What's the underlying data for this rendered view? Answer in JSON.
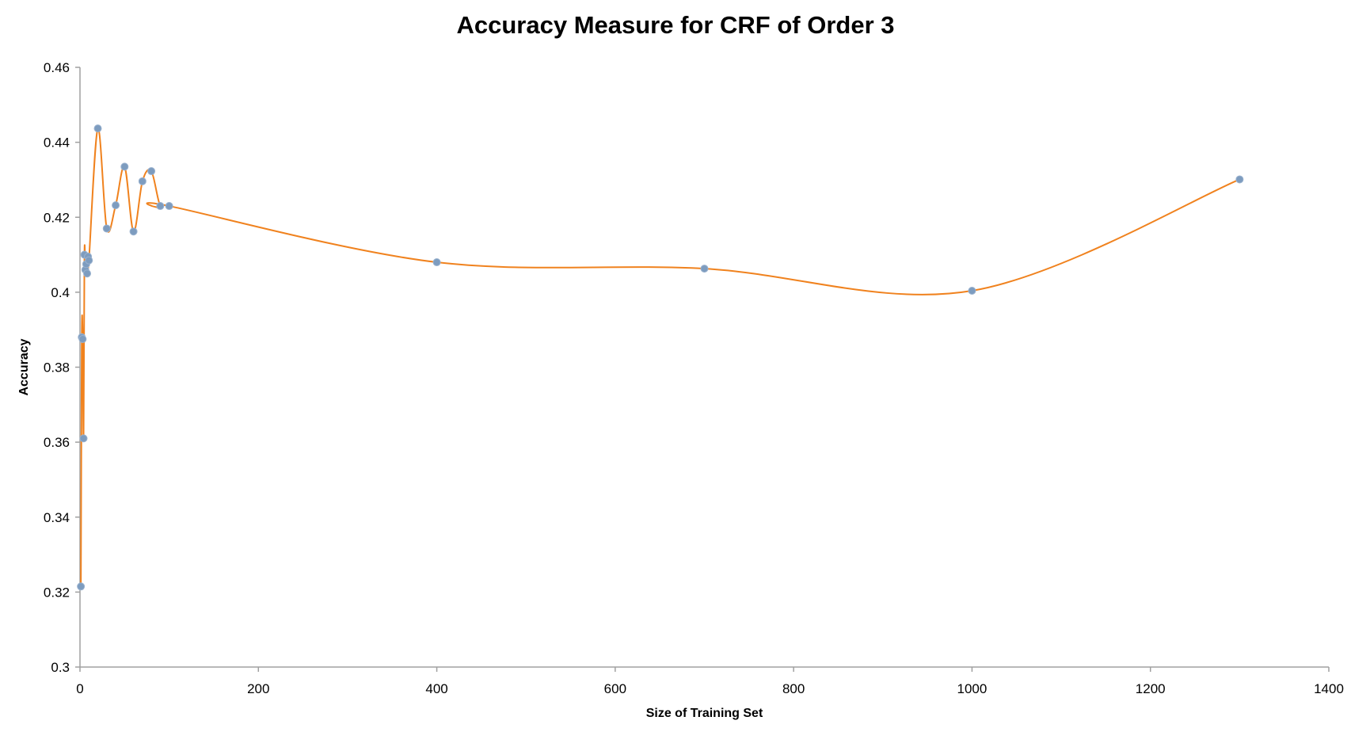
{
  "chart_data": {
    "type": "scatter",
    "title": "Accuracy Measure for CRF of Order 3",
    "xlabel": "Size of Training Set",
    "ylabel": "Accuracy",
    "xlim": [
      0,
      1400
    ],
    "ylim": [
      0.3,
      0.46
    ],
    "x_ticks": [
      0,
      200,
      400,
      600,
      800,
      1000,
      1200,
      1400
    ],
    "x_tick_labels": [
      "0",
      "200",
      "400",
      "600",
      "800",
      "1000",
      "1200",
      "1400"
    ],
    "y_ticks": [
      0.3,
      0.32,
      0.34,
      0.36,
      0.38,
      0.4,
      0.42,
      0.44,
      0.46
    ],
    "y_tick_labels": [
      "0.3",
      "0.32",
      "0.34",
      "0.36",
      "0.38",
      "0.4",
      "0.42",
      "0.44",
      "0.46"
    ],
    "grid": false,
    "legend": "none",
    "smooth_line": true,
    "line_color": "#f0821e",
    "marker_color": "#7d9cbf",
    "axis_color": "#a0a0a0",
    "series": [
      {
        "x": [
          1,
          2,
          3,
          4,
          5,
          6,
          7,
          8,
          9,
          10,
          20,
          30,
          40,
          50,
          60,
          70,
          80,
          90,
          100,
          400,
          700,
          1000,
          1300
        ],
        "y": [
          0.3215,
          0.388,
          0.3875,
          0.361,
          0.41,
          0.406,
          0.4075,
          0.405,
          0.4095,
          0.4085,
          0.4437,
          0.417,
          0.4232,
          0.4335,
          0.4162,
          0.4296,
          0.4323,
          0.423,
          0.423,
          0.408,
          0.4063,
          0.4004,
          0.4301
        ]
      }
    ]
  }
}
